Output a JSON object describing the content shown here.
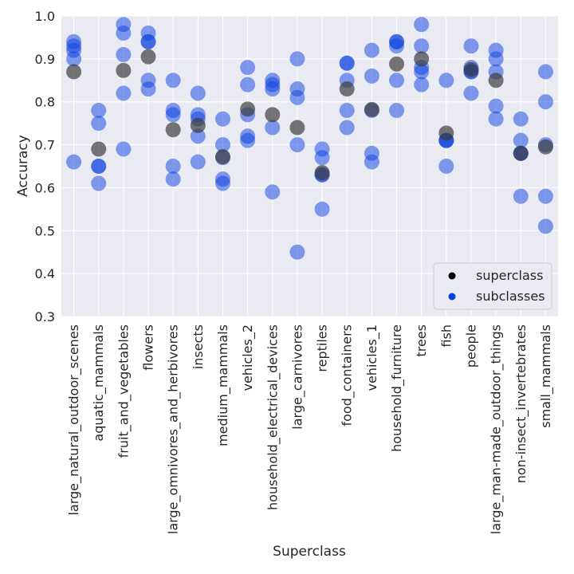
{
  "chart_data": {
    "type": "scatter",
    "xlabel": "Superclass",
    "ylabel": "Accuracy",
    "ylim": [
      0.3,
      1.0
    ],
    "yticks": [
      "0.3",
      "0.4",
      "0.5",
      "0.6",
      "0.7",
      "0.8",
      "0.9",
      "1.0"
    ],
    "grid": true,
    "legend_position": "bottom-right",
    "colors": {
      "superclass": "#3a3a3a",
      "subclasses": "#0a3fe0",
      "background": "#eaeaf2",
      "grid": "#ffffff"
    },
    "categories": [
      "large_natural_outdoor_scenes",
      "aquatic_mammals",
      "fruit_and_vegetables",
      "flowers",
      "large_omnivores_and_herbivores",
      "insects",
      "medium_mammals",
      "vehicles_2",
      "household_electrical_devices",
      "large_carnivores",
      "reptiles",
      "food_containers",
      "vehicles_1",
      "household_furniture",
      "trees",
      "fish",
      "people",
      "large_man-made_outdoor_things",
      "non-insect_invertebrates",
      "small_mammals"
    ],
    "series": [
      {
        "name": "superclass",
        "values": [
          0.87,
          0.69,
          0.873,
          0.905,
          0.735,
          0.745,
          0.672,
          0.783,
          0.77,
          0.74,
          0.635,
          0.83,
          0.782,
          0.888,
          0.9,
          0.727,
          0.875,
          0.85,
          0.68,
          0.695
        ]
      },
      {
        "name": "subclasses",
        "values": [
          [
            0.94,
            0.93,
            0.92,
            0.9,
            0.66
          ],
          [
            0.78,
            0.75,
            0.65,
            0.65,
            0.61
          ],
          [
            0.98,
            0.96,
            0.91,
            0.82,
            0.69
          ],
          [
            0.96,
            0.94,
            0.94,
            0.85,
            0.83
          ],
          [
            0.85,
            0.78,
            0.77,
            0.65,
            0.62
          ],
          [
            0.82,
            0.77,
            0.76,
            0.72,
            0.66
          ],
          [
            0.76,
            0.7,
            0.67,
            0.62,
            0.61
          ],
          [
            0.88,
            0.84,
            0.77,
            0.72,
            0.71
          ],
          [
            0.85,
            0.84,
            0.83,
            0.74,
            0.59
          ],
          [
            0.9,
            0.83,
            0.81,
            0.7,
            0.45
          ],
          [
            0.69,
            0.67,
            0.63,
            0.63,
            0.55
          ],
          [
            0.89,
            0.89,
            0.85,
            0.78,
            0.74
          ],
          [
            0.92,
            0.86,
            0.78,
            0.68,
            0.66
          ],
          [
            0.94,
            0.94,
            0.93,
            0.85,
            0.78
          ],
          [
            0.98,
            0.93,
            0.88,
            0.87,
            0.84
          ],
          [
            0.85,
            0.71,
            0.71,
            0.71,
            0.65
          ],
          [
            0.93,
            0.88,
            0.87,
            0.87,
            0.82
          ],
          [
            0.92,
            0.9,
            0.87,
            0.79,
            0.76
          ],
          [
            0.76,
            0.71,
            0.68,
            0.68,
            0.58
          ],
          [
            0.87,
            0.8,
            0.7,
            0.58,
            0.51
          ]
        ]
      }
    ]
  }
}
